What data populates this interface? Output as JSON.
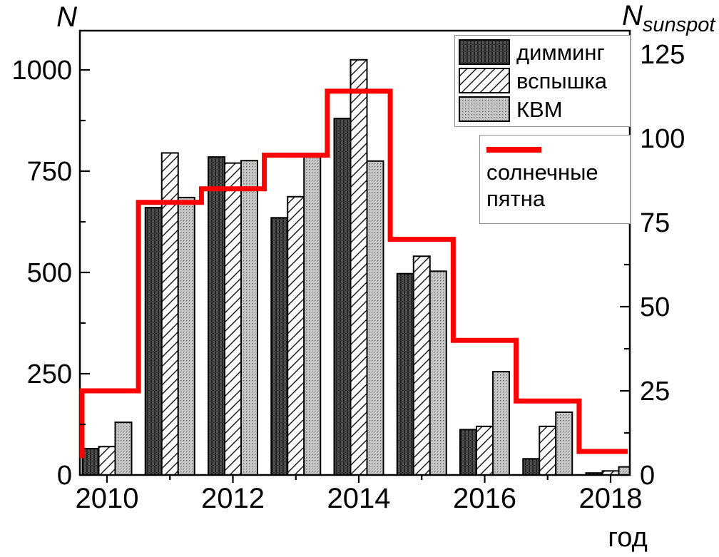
{
  "figure_title": "",
  "chart_data": {
    "type": "bar",
    "title": "",
    "categories": [
      "2010",
      "2011",
      "2012",
      "2013",
      "2014",
      "2015",
      "2016",
      "2017",
      "2018"
    ],
    "series": [
      {
        "name": "димминг",
        "type": "bar",
        "axis": "left",
        "pattern": "dark-vertical-stripes",
        "values": [
          65,
          660,
          785,
          635,
          880,
          497,
          112,
          40,
          5
        ]
      },
      {
        "name": "вспышка",
        "type": "bar",
        "axis": "left",
        "pattern": "white-diagonal-hatch",
        "values": [
          70,
          795,
          770,
          687,
          1025,
          540,
          120,
          120,
          10
        ]
      },
      {
        "name": "КВМ",
        "type": "bar",
        "axis": "left",
        "pattern": "gray-dots",
        "values": [
          130,
          685,
          776,
          787,
          775,
          503,
          255,
          155,
          20
        ]
      },
      {
        "name": "солнечные пятна",
        "type": "step-line",
        "axis": "right",
        "color": "#fe0000",
        "values": [
          25,
          81,
          85,
          95,
          114,
          70,
          40,
          22,
          7
        ],
        "lead_in_value": 5
      }
    ],
    "left_axis": {
      "label": "N",
      "ticks": [
        0,
        250,
        500,
        750,
        1000
      ],
      "minor_ticks": [
        125,
        375,
        625,
        875
      ],
      "range": [
        0,
        1097
      ]
    },
    "right_axis": {
      "label_base": "N",
      "label_sub": "sunspot",
      "ticks": [
        0,
        25,
        50,
        75,
        100,
        125
      ],
      "minor_ticks": [
        12.5,
        37.5,
        62.5,
        87.5,
        112.5
      ],
      "range": [
        0,
        132
      ]
    },
    "x_axis": {
      "label": "год",
      "major_tick_labels": [
        "2010",
        "2012",
        "2014",
        "2016",
        "2018"
      ],
      "minor_tick_years": [
        "2011",
        "2013",
        "2015",
        "2017"
      ]
    },
    "grid": "off",
    "legend_position": "top-right"
  },
  "colors": {
    "step_line": "#fe0000",
    "bar_outline": "#000000",
    "dimming_fill": "#4f4f4f",
    "dimming_stripe": "#242424",
    "flare_fill": "#ffffff",
    "flare_hatch": "#111111",
    "cme_fill": "#c4c4c4",
    "cme_dot": "#767676",
    "axis": "#000000",
    "legend_border": "#8f8f8f"
  }
}
